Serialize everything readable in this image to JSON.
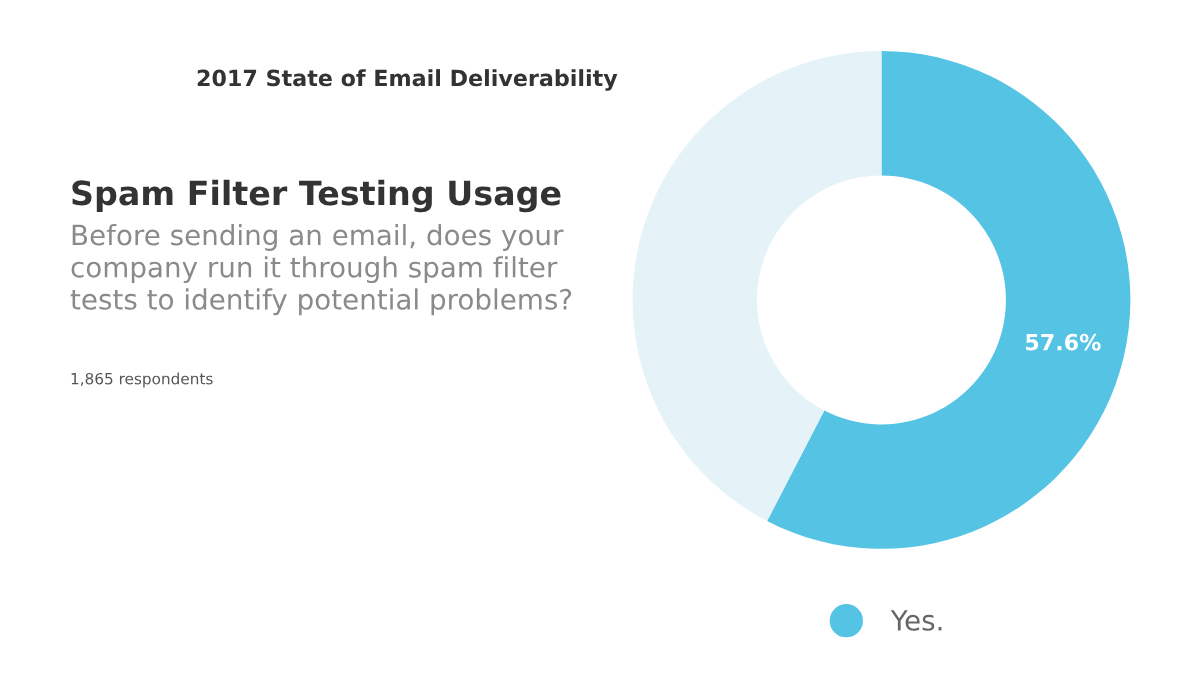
{
  "chart_data": {
    "type": "donut",
    "title": "Spam Filter Testing Usage",
    "subtitle": "Before sending an email, does your\ncompany run it through spam filter\ntests to identify potential problems?",
    "annotations": [
      "2017 State of Email Deliverability",
      "1,865 respondents"
    ],
    "categories": [
      "Yes.",
      null
    ],
    "values": [
      57.6,
      42.4
    ],
    "colors": [
      "#55c3e4",
      "#e5f3f9"
    ],
    "value_labels": [
      "57.6%",
      null
    ],
    "legend": "bottom"
  }
}
